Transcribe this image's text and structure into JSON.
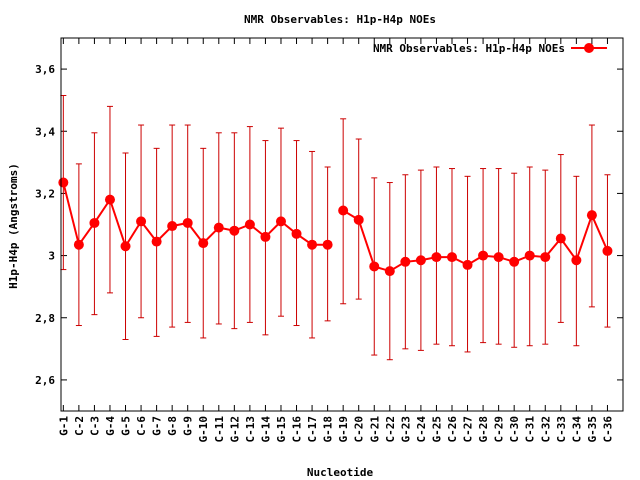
{
  "chart_data": {
    "type": "line",
    "title": "NMR Observables: H1p-H4p NOEs",
    "xlabel": "Nucleotide",
    "ylabel": "H1p-H4p (Angstroms)",
    "ylim": [
      2.5,
      3.7
    ],
    "yticks": [
      2.6,
      2.8,
      3.0,
      3.2,
      3.4,
      3.6
    ],
    "ytick_labels": [
      "2,6",
      "2,8",
      "3",
      "3,2",
      "3,4",
      "3,6"
    ],
    "xlim": [
      0.85,
      37.0
    ],
    "grid": false,
    "legend": {
      "position": "top-right"
    },
    "color": "#ff0000",
    "errorbar_color": "#cc0000",
    "series": [
      {
        "name": "NMR Observables: H1p-H4p NOEs",
        "segments": [
          [
            {
              "x": 1,
              "label": "G-1",
              "y": 3.235,
              "lo": 2.955,
              "hi": 3.515
            },
            {
              "x": 2,
              "label": "C-2",
              "y": 3.035,
              "lo": 2.775,
              "hi": 3.295
            },
            {
              "x": 3,
              "label": "C-3",
              "y": 3.105,
              "lo": 2.81,
              "hi": 3.395
            },
            {
              "x": 4,
              "label": "G-4",
              "y": 3.18,
              "lo": 2.88,
              "hi": 3.48
            },
            {
              "x": 5,
              "label": "G-5",
              "y": 3.03,
              "lo": 2.73,
              "hi": 3.33
            },
            {
              "x": 6,
              "label": "C-6",
              "y": 3.11,
              "lo": 2.8,
              "hi": 3.42
            },
            {
              "x": 7,
              "label": "G-7",
              "y": 3.045,
              "lo": 2.74,
              "hi": 3.345
            },
            {
              "x": 8,
              "label": "G-8",
              "y": 3.095,
              "lo": 2.77,
              "hi": 3.42
            },
            {
              "x": 9,
              "label": "G-9",
              "y": 3.105,
              "lo": 2.785,
              "hi": 3.42
            },
            {
              "x": 10,
              "label": "G-10",
              "y": 3.04,
              "lo": 2.735,
              "hi": 3.345
            },
            {
              "x": 11,
              "label": "C-11",
              "y": 3.09,
              "lo": 2.78,
              "hi": 3.395
            },
            {
              "x": 12,
              "label": "G-12",
              "y": 3.08,
              "lo": 2.765,
              "hi": 3.395
            },
            {
              "x": 13,
              "label": "C-13",
              "y": 3.1,
              "lo": 2.785,
              "hi": 3.415
            },
            {
              "x": 14,
              "label": "G-14",
              "y": 3.06,
              "lo": 2.745,
              "hi": 3.37
            },
            {
              "x": 15,
              "label": "G-15",
              "y": 3.11,
              "lo": 2.805,
              "hi": 3.41
            },
            {
              "x": 16,
              "label": "C-16",
              "y": 3.07,
              "lo": 2.775,
              "hi": 3.37
            },
            {
              "x": 17,
              "label": "C-17",
              "y": 3.035,
              "lo": 2.735,
              "hi": 3.335
            },
            {
              "x": 18,
              "label": "G-18",
              "y": 3.035,
              "lo": 2.79,
              "hi": 3.285
            }
          ],
          [
            {
              "x": 19,
              "label": "G-19",
              "y": 3.145,
              "lo": 2.845,
              "hi": 3.44
            },
            {
              "x": 20,
              "label": "C-20",
              "y": 3.115,
              "lo": 2.86,
              "hi": 3.375
            },
            {
              "x": 21,
              "label": "G-21",
              "y": 2.965,
              "lo": 2.68,
              "hi": 3.25
            },
            {
              "x": 22,
              "label": "C-22",
              "y": 2.95,
              "lo": 2.665,
              "hi": 3.235
            },
            {
              "x": 23,
              "label": "G-23",
              "y": 2.98,
              "lo": 2.7,
              "hi": 3.26
            },
            {
              "x": 24,
              "label": "C-24",
              "y": 2.985,
              "lo": 2.695,
              "hi": 3.275
            },
            {
              "x": 25,
              "label": "G-25",
              "y": 2.995,
              "lo": 2.715,
              "hi": 3.285
            },
            {
              "x": 26,
              "label": "C-26",
              "y": 2.995,
              "lo": 2.71,
              "hi": 3.28
            },
            {
              "x": 27,
              "label": "C-27",
              "y": 2.97,
              "lo": 2.69,
              "hi": 3.255
            },
            {
              "x": 28,
              "label": "G-28",
              "y": 3.0,
              "lo": 2.72,
              "hi": 3.28
            },
            {
              "x": 29,
              "label": "C-29",
              "y": 2.995,
              "lo": 2.715,
              "hi": 3.28
            },
            {
              "x": 30,
              "label": "C-30",
              "y": 2.98,
              "lo": 2.705,
              "hi": 3.265
            },
            {
              "x": 31,
              "label": "C-31",
              "y": 3.0,
              "lo": 2.71,
              "hi": 3.285
            },
            {
              "x": 32,
              "label": "C-32",
              "y": 2.995,
              "lo": 2.715,
              "hi": 3.275
            },
            {
              "x": 33,
              "label": "C-33",
              "y": 3.055,
              "lo": 2.785,
              "hi": 3.325
            },
            {
              "x": 34,
              "label": "C-34",
              "y": 2.985,
              "lo": 2.71,
              "hi": 3.255
            },
            {
              "x": 35,
              "label": "G-35",
              "y": 3.13,
              "lo": 2.835,
              "hi": 3.42
            },
            {
              "x": 36,
              "label": "C-36",
              "y": 3.015,
              "lo": 2.77,
              "hi": 3.26
            }
          ]
        ]
      }
    ]
  }
}
